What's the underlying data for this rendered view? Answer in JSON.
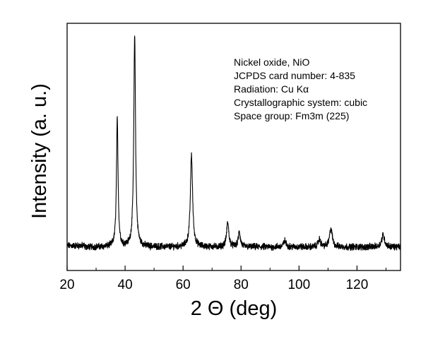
{
  "chart_data": {
    "type": "line",
    "xlabel": "2 Θ (deg)",
    "ylabel": "Intensity (a. u.)",
    "xlim": [
      20,
      135
    ],
    "ylim": [
      0,
      1.0
    ],
    "y_ticks_shown": false,
    "grid": false,
    "legend": "none",
    "x_ticks": [
      20,
      40,
      60,
      80,
      100,
      120
    ],
    "annotation": [
      "Nickel oxide, NiO",
      "JCPDS card number: 4-835",
      "Radiation: Cu Kα",
      "Crystallographic system: cubic",
      "Space group: Fm3m (225)"
    ],
    "baseline": 0.095,
    "peaks": [
      {
        "x": 37.3,
        "y": 0.61
      },
      {
        "x": 43.3,
        "y": 0.955
      },
      {
        "x": 62.9,
        "y": 0.47
      },
      {
        "x": 75.4,
        "y": 0.195
      },
      {
        "x": 79.4,
        "y": 0.155
      },
      {
        "x": 95.1,
        "y": 0.12
      },
      {
        "x": 107.0,
        "y": 0.125
      },
      {
        "x": 111.0,
        "y": 0.17
      },
      {
        "x": 129.0,
        "y": 0.145
      }
    ],
    "line_color": "#000000"
  }
}
